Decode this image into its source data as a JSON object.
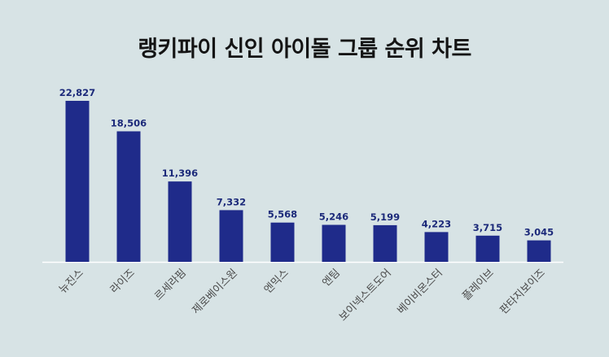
{
  "chart_data": {
    "type": "bar",
    "title": "랭키파이 신인 아이돌 그룹 순위 차트",
    "categories": [
      "뉴진스",
      "라이즈",
      "르세라핌",
      "제로베이스원",
      "엔믹스",
      "엔팀",
      "보이넥스트도어",
      "베이비몬스터",
      "플레이브",
      "판타지보이즈"
    ],
    "values": [
      22827,
      18506,
      11396,
      7332,
      5568,
      5246,
      5199,
      4223,
      3715,
      3045
    ],
    "value_labels": [
      "22,827",
      "18,506",
      "11,396",
      "7,332",
      "5,568",
      "5,246",
      "5,199",
      "4,223",
      "3,715",
      "3,045"
    ],
    "bar_color": "#1f2b8a",
    "background": "#d7e3e5",
    "ylim": [
      0,
      22827
    ],
    "grid": false,
    "legend": "none"
  }
}
